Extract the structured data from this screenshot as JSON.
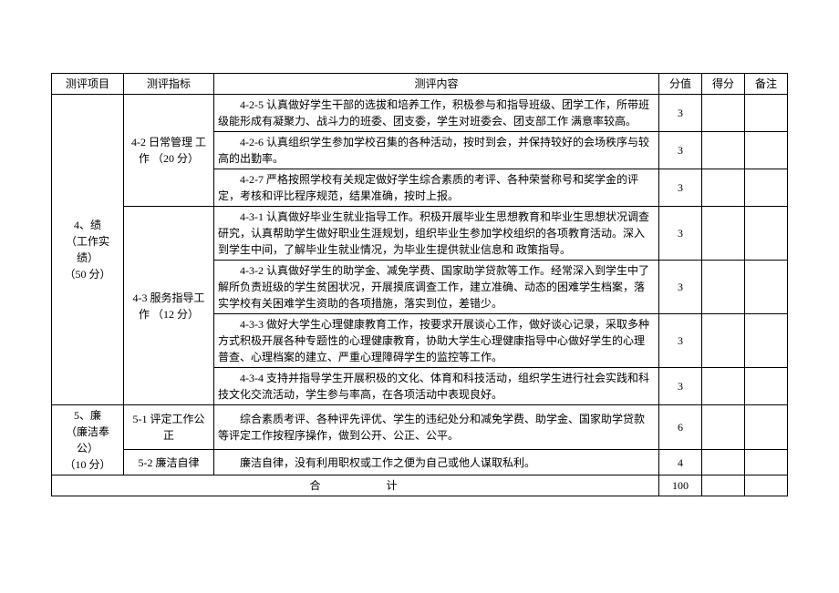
{
  "headers": {
    "item": "测评项目",
    "indicator": "测评指标",
    "content": "测评内容",
    "score": "分值",
    "got": "得分",
    "note": "备注"
  },
  "section4": {
    "title": "4、绩\n（工作实绩）\n（50 分）",
    "indicator42": "4-2 日常管理 工\n作 （20 分）",
    "indicator43": "4-3 服务指导工\n作 （12 分）",
    "rows": [
      {
        "content": "4-2-5 认真做好学生干部的选拔和培养工作，积极参与和指导班级、团学工作，所带班级能形成有凝聚力、战斗力的班委、团支委，学生对班委会、团支部工作 满意率较高。",
        "score": 3
      },
      {
        "content": "4-2-6 认真组织学生参加学校召集的各种活动，按时到会，并保持较好的会场秩序与较高的出勤率。",
        "score": 3
      },
      {
        "content": "4-2-7 严格按照学校有关规定做好学生综合素质的考评、各种荣誉称号和奖学金的评定，考核和评比程序规范，结果准确，按时上报。",
        "score": 3
      },
      {
        "content": "4-3-1 认真做好毕业生就业指导工作。积极开展毕业生思想教育和毕业生思想状况调查研究，认真帮助学生做好职业生涯规划，组织毕业生参加学校组织的各项教育活动。深入到学生中间，了解毕业生就业情况，为毕业生提供就业信息和 政策指导。",
        "score": 3
      },
      {
        "content": "4-3-2 认真做好学生的助学金、减免学费、国家助学贷款等工作。经常深入到学生中了解所负责班级的学生贫困状况，开展摸底调查工作，建立准确、动态的困难学生档案，落实学校有关困难学生资助的各项措施，落实到位，差错少。",
        "score": 3
      },
      {
        "content": "4-3-3 做好大学生心理健康教育工作，按要求开展谈心工作，做好谈心记录，采取多种方式积极开展各种专题性的心理健康教育，协助大学生心理健康指导中心做好学生的心理普查、心理档案的建立、严重心理障碍学生的监控等工作。",
        "score": 3
      },
      {
        "content": "4-3-4 支持并指导学生开展积极的文化、体育和科技活动，组织学生进行社会实践和科技文化交流活动，学生参与率高，在各项活动中表现良好。",
        "score": 3
      }
    ]
  },
  "section5": {
    "title": "5、廉\n（廉洁奉公）\n（10 分）",
    "rows": [
      {
        "indicator": "5-1 评定工作公\n正",
        "content": "综合素质考评、各种评先评优、学生的违纪处分和减免学费、助学金、国家助学贷款等评定工作按程序操作，做到公开、公正、公平。",
        "score": 6
      },
      {
        "indicator": "5-2 廉洁自律",
        "content": "廉洁自律，没有利用职权或工作之便为自己或他人谋取私利。",
        "score": 4
      }
    ]
  },
  "total": {
    "label": "合计",
    "score": 100
  }
}
